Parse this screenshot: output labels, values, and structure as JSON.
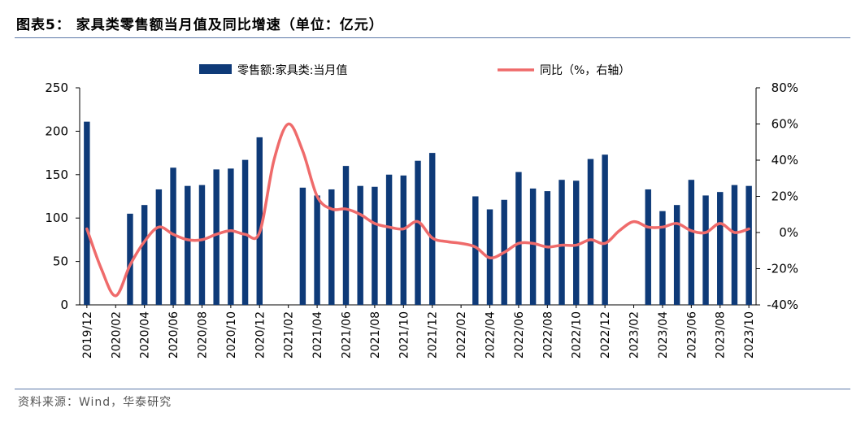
{
  "header": {
    "title": "图表5： 家具类零售额当月值及同比增速（单位：亿元）"
  },
  "footer": {
    "source": "资料来源：Wind，华泰研究"
  },
  "colors": {
    "bar": "#0e3a78",
    "line": "#ef6b6b",
    "rule": "#5b78a8"
  },
  "chart_data": {
    "type": "bar+line",
    "title": "家具类零售额当月值及同比增速（单位：亿元）",
    "categories": [
      "2019/12",
      "2020/01",
      "2020/02",
      "2020/03",
      "2020/04",
      "2020/05",
      "2020/06",
      "2020/07",
      "2020/08",
      "2020/09",
      "2020/10",
      "2020/11",
      "2020/12",
      "2021/01",
      "2021/02",
      "2021/03",
      "2021/04",
      "2021/05",
      "2021/06",
      "2021/07",
      "2021/08",
      "2021/09",
      "2021/10",
      "2021/11",
      "2021/12",
      "2022/01",
      "2022/02",
      "2022/03",
      "2022/04",
      "2022/05",
      "2022/06",
      "2022/07",
      "2022/08",
      "2022/09",
      "2022/10",
      "2022/11",
      "2022/12",
      "2023/01",
      "2023/02",
      "2023/03",
      "2023/04",
      "2023/05",
      "2023/06",
      "2023/07",
      "2023/08",
      "2023/09",
      "2023/10"
    ],
    "tick_labels": [
      "2019/12",
      "2020/02",
      "2020/04",
      "2020/06",
      "2020/08",
      "2020/10",
      "2020/12",
      "2021/02",
      "2021/04",
      "2021/06",
      "2021/08",
      "2021/10",
      "2021/12",
      "2022/02",
      "2022/04",
      "2022/06",
      "2022/08",
      "2022/10",
      "2022/12",
      "2023/02",
      "2023/04",
      "2023/06",
      "2023/08",
      "2023/10"
    ],
    "series": [
      {
        "name": "零售额:家具类:当月值",
        "type": "bar",
        "axis": "left",
        "values": [
          211,
          null,
          null,
          105,
          115,
          133,
          158,
          137,
          138,
          156,
          157,
          167,
          193,
          null,
          null,
          135,
          126,
          133,
          160,
          137,
          136,
          150,
          149,
          166,
          175,
          null,
          null,
          125,
          110,
          121,
          153,
          134,
          131,
          144,
          143,
          168,
          173,
          null,
          null,
          133,
          108,
          115,
          144,
          126,
          130,
          138,
          137
        ]
      },
      {
        "name": "同比（%，右轴）",
        "type": "line",
        "axis": "right",
        "values": [
          2,
          -20,
          -35,
          -18,
          -5,
          3,
          -1,
          -4,
          -4,
          -1,
          1,
          -1,
          0,
          40,
          60,
          45,
          20,
          13,
          13,
          10,
          5,
          3,
          2,
          6,
          -3,
          -5,
          -6,
          -8,
          -14,
          -11,
          -6,
          -6,
          -8,
          -7,
          -7,
          -4,
          -6,
          1,
          6,
          3,
          3,
          5,
          1,
          0,
          5,
          0,
          2
        ]
      }
    ],
    "ylim_left": [
      0,
      250
    ],
    "yticks_left": [
      "0",
      "50",
      "100",
      "150",
      "200",
      "250"
    ],
    "ylim_right": [
      -40,
      80
    ],
    "yticks_right": [
      "-40%",
      "-20%",
      "0%",
      "20%",
      "40%",
      "60%",
      "80%"
    ],
    "legend_position": "top",
    "xlabel": "",
    "ylabel": ""
  }
}
